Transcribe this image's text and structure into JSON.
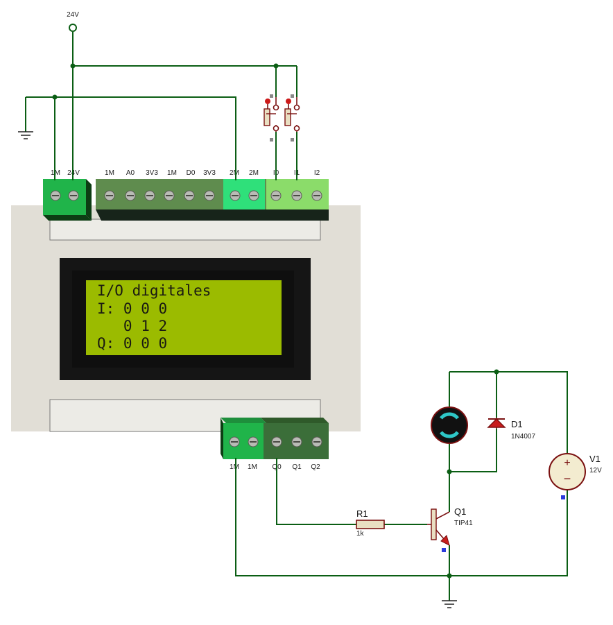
{
  "supply": {
    "label": "24V"
  },
  "top_terminals": [
    "1M",
    "24V",
    "1M",
    "A0",
    "3V3",
    "1M",
    "D0",
    "3V3",
    "2M",
    "2M",
    "I0",
    "I1",
    "I2"
  ],
  "bottom_terminals": [
    "1M",
    "1M",
    "Q0",
    "Q1",
    "Q2"
  ],
  "lcd": {
    "lines": [
      "I/O digitales",
      "I: 0 0 0",
      "   0 1 2",
      "Q: 0 0 0"
    ]
  },
  "r1": {
    "name": "R1",
    "value": "1k"
  },
  "q1": {
    "name": "Q1",
    "value": "TIP41"
  },
  "d1": {
    "name": "D1",
    "value": "1N4007"
  },
  "v1": {
    "name": "V1",
    "value": "12V",
    "plus": "+",
    "minus": "−"
  },
  "colors": {
    "wire": "#0b5e14",
    "component": "#7a1010",
    "lcd_bg": "#9bbb00",
    "case": "#e1ded6"
  }
}
